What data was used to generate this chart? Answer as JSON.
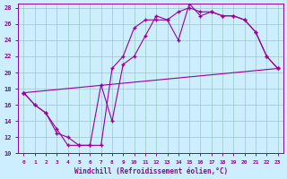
{
  "xlabel": "Windchill (Refroidissement éolien,°C)",
  "bg_color": "#cceeff",
  "line_color": "#990099",
  "grid_color": "#99ccbb",
  "xmin": 0,
  "xmax": 23,
  "ymin": 10,
  "ymax": 28,
  "yticks": [
    10,
    12,
    14,
    16,
    18,
    20,
    22,
    24,
    26,
    28
  ],
  "xticks": [
    0,
    1,
    2,
    3,
    4,
    5,
    6,
    7,
    8,
    9,
    10,
    11,
    12,
    13,
    14,
    15,
    16,
    17,
    18,
    19,
    20,
    21,
    22,
    23
  ],
  "line1_x": [
    0,
    1,
    2,
    3,
    4,
    5,
    6,
    7,
    8,
    9,
    10,
    11,
    12,
    13,
    14,
    15,
    16,
    17,
    18,
    19,
    20,
    21,
    22,
    23
  ],
  "line1_y": [
    17.5,
    16.0,
    15.0,
    13.0,
    11.0,
    11.0,
    11.0,
    18.5,
    14.0,
    21.0,
    22.0,
    24.5,
    27.0,
    26.5,
    24.0,
    28.5,
    27.0,
    27.5,
    27.0,
    27.0,
    26.5,
    25.0,
    22.0,
    20.5
  ],
  "line2_x": [
    0,
    1,
    2,
    3,
    4,
    5,
    6,
    7,
    8,
    9,
    10,
    11,
    12,
    13,
    14,
    15,
    16,
    17,
    18,
    19,
    20,
    21,
    22,
    23
  ],
  "line2_y": [
    17.5,
    16.0,
    15.0,
    12.5,
    12.0,
    11.0,
    11.0,
    11.0,
    20.5,
    22.0,
    25.5,
    26.5,
    26.5,
    26.5,
    27.5,
    28.0,
    27.5,
    27.5,
    27.0,
    27.0,
    26.5,
    25.0,
    22.0,
    20.5
  ],
  "line3_x": [
    0,
    23
  ],
  "line3_y": [
    17.5,
    20.5
  ]
}
